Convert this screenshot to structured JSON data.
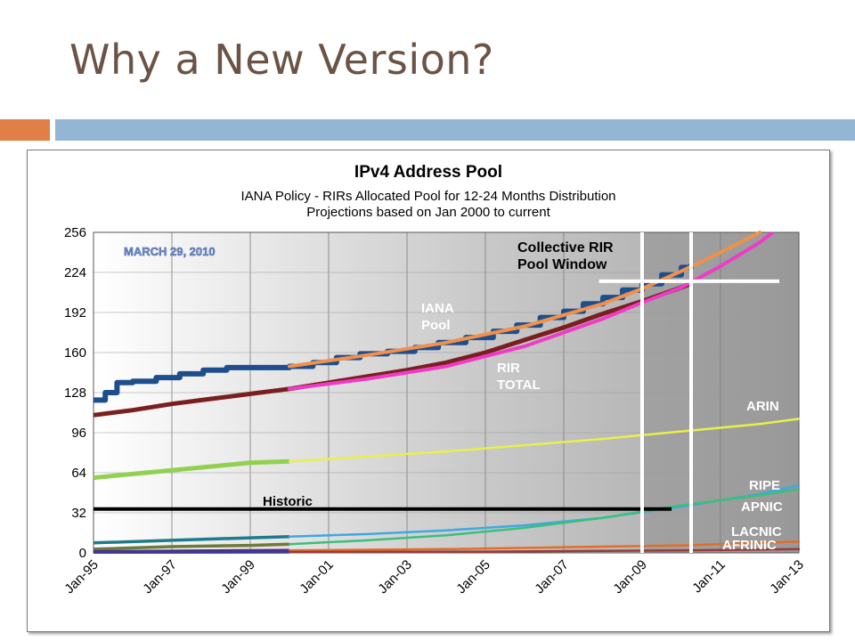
{
  "slide": {
    "title": "Why a New Version?"
  },
  "colors": {
    "title": "#6b5345",
    "accent_bar_left": "#e07f48",
    "accent_bar_right": "#93b6d4"
  },
  "chart_data": {
    "type": "line",
    "title": "IPv4 Address Pool",
    "subtitle_lines": [
      "IANA Policy - RIRs Allocated Pool for 12-24 Months Distribution",
      "Projections based on Jan 2000 to current"
    ],
    "stamp": "MARCH 29, 2010",
    "xlabel": "",
    "ylabel": "",
    "xlim": [
      1995,
      2013
    ],
    "ylim": [
      0,
      256
    ],
    "x_tick_labels": [
      "Jan-95",
      "Jan-97",
      "Jan-99",
      "Jan-01",
      "Jan-03",
      "Jan-05",
      "Jan-07",
      "Jan-09",
      "Jan-11",
      "Jan-13"
    ],
    "x_tick_values": [
      1995,
      1997,
      1999,
      2001,
      2003,
      2005,
      2007,
      2009,
      2011,
      2013
    ],
    "y_ticks": [
      0,
      32,
      64,
      96,
      128,
      160,
      192,
      224,
      256
    ],
    "grid": true,
    "series": [
      {
        "name": "IANA Pool",
        "label_lines": [
          "IANA",
          "Pool"
        ],
        "color": "#1f4e8c",
        "projection_color": "#f0904a",
        "stepped": true,
        "x": [
          1995,
          1995.3,
          1995.6,
          1996,
          1996.6,
          1997.2,
          1997.8,
          1998.4,
          1999,
          1999.5,
          2000,
          2000.6,
          2001.2,
          2001.8,
          2002.5,
          2003.2,
          2003.8,
          2004.5,
          2005.2,
          2005.8,
          2006.4,
          2007,
          2007.5,
          2008,
          2008.5,
          2009,
          2009.5,
          2010,
          2010.25
        ],
        "y": [
          122,
          128,
          136,
          137,
          140,
          143,
          146,
          148,
          148,
          148,
          149,
          152,
          156,
          159,
          161,
          164,
          168,
          172,
          177,
          182,
          188,
          193,
          199,
          204,
          210,
          215,
          222,
          228,
          231
        ],
        "projection_x": [
          2000,
          2002,
          2004,
          2006,
          2008,
          2009,
          2010,
          2011,
          2012
        ],
        "projection_y": [
          149,
          158,
          168,
          181,
          199,
          211,
          225,
          240,
          256
        ]
      },
      {
        "name": "RIR TOTAL",
        "label_lines": [
          "RIR",
          "TOTAL"
        ],
        "color": "#7a1f1f",
        "projection_color": "#ee3cc6",
        "x": [
          1995,
          1996,
          1997,
          1998,
          1999,
          2000,
          2001,
          2002,
          2003,
          2004,
          2005,
          2006,
          2007,
          2008,
          2009,
          2010,
          2010.25
        ],
        "y": [
          110,
          114,
          119,
          123,
          127,
          131,
          136,
          141,
          146,
          152,
          160,
          170,
          180,
          191,
          201,
          212,
          215
        ],
        "projection_x": [
          2000,
          2002,
          2004,
          2006,
          2008,
          2009,
          2010,
          2011,
          2012,
          2012.3
        ],
        "projection_y": [
          131,
          139,
          149,
          165,
          187,
          200,
          212,
          229,
          248,
          255
        ]
      },
      {
        "name": "ARIN",
        "color": "#92d050",
        "projection_color": "#e8f04a",
        "x": [
          1995,
          1996,
          1997,
          1998,
          1999,
          2000
        ],
        "y": [
          60,
          63,
          66,
          69,
          72,
          73
        ],
        "projection_x": [
          2000,
          2002,
          2004,
          2006,
          2008,
          2010,
          2012,
          2013
        ],
        "projection_y": [
          73,
          77,
          81,
          86,
          91,
          97,
          103,
          107
        ]
      },
      {
        "name": "RIPE",
        "color": "#1f7a8c",
        "projection_color": "#3fa8e0",
        "x": [
          1995,
          1997,
          1999,
          2000
        ],
        "y": [
          8,
          10,
          12,
          13
        ],
        "projection_x": [
          2000,
          2002,
          2004,
          2006,
          2008,
          2010,
          2012,
          2013
        ],
        "projection_y": [
          13,
          15,
          18,
          22,
          28,
          37,
          47,
          54
        ]
      },
      {
        "name": "APNIC",
        "color": "#6d7a3a",
        "projection_color": "#3cbf7a",
        "x": [
          1995,
          1997,
          1999,
          2000
        ],
        "y": [
          3,
          5,
          6,
          7
        ],
        "projection_x": [
          2000,
          2002,
          2004,
          2006,
          2008,
          2010,
          2012,
          2013
        ],
        "projection_y": [
          7,
          10,
          14,
          20,
          28,
          38,
          46,
          51
        ]
      },
      {
        "name": "LACNIC",
        "color": "#5a2a7a",
        "projection_color": "#e06e2a",
        "x": [
          1995,
          2000
        ],
        "y": [
          1,
          2
        ],
        "projection_x": [
          2000,
          2004,
          2008,
          2010,
          2012,
          2013
        ],
        "projection_y": [
          2,
          3,
          5,
          6,
          8,
          9
        ]
      },
      {
        "name": "AFRINIC",
        "color": "#3a3a9a",
        "projection_color": "#9a3a3a",
        "x": [
          1995,
          2000
        ],
        "y": [
          0.5,
          0.7
        ],
        "projection_x": [
          2000,
          2005,
          2010,
          2013
        ],
        "projection_y": [
          0.7,
          1,
          2,
          3
        ]
      }
    ],
    "annotations": {
      "historic": {
        "text": "Historic",
        "y": 35,
        "x_start": 1995,
        "x_end": 2009.75
      },
      "window": {
        "label_lines": [
          "Collective RIR",
          "Pool Window"
        ],
        "x_start": 2009,
        "x_end": 2010.25
      }
    }
  }
}
